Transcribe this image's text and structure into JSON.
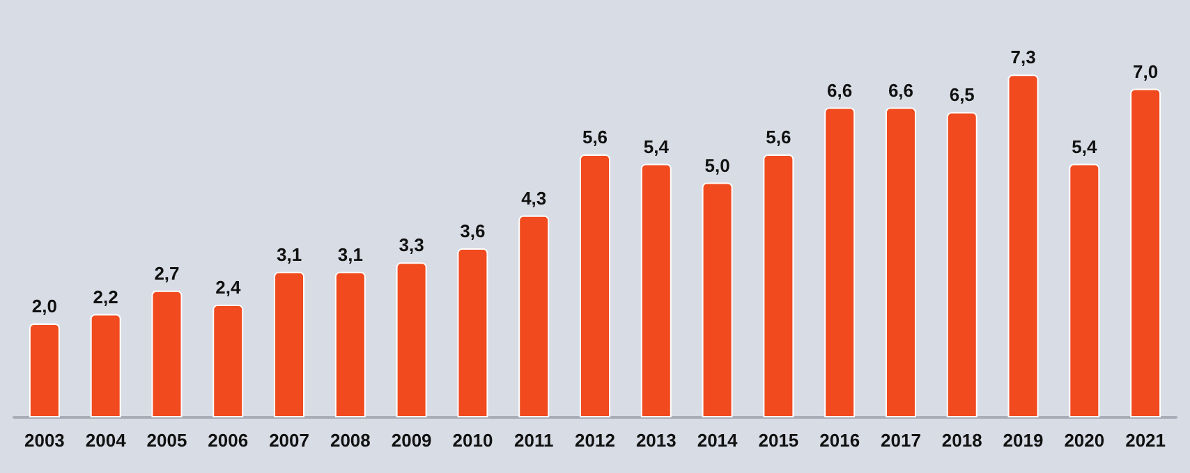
{
  "chart_data": {
    "type": "bar",
    "categories": [
      "2003",
      "2004",
      "2005",
      "2006",
      "2007",
      "2008",
      "2009",
      "2010",
      "2011",
      "2012",
      "2013",
      "2014",
      "2015",
      "2016",
      "2017",
      "2018",
      "2019",
      "2020",
      "2021"
    ],
    "values": [
      2.0,
      2.2,
      2.7,
      2.4,
      3.1,
      3.1,
      3.3,
      3.6,
      4.3,
      5.6,
      5.4,
      5.0,
      5.6,
      6.6,
      6.6,
      6.5,
      7.3,
      5.4,
      7.0
    ],
    "value_labels": [
      "2,0",
      "2,2",
      "2,7",
      "2,4",
      "3,1",
      "3,1",
      "3,3",
      "3,6",
      "4,3",
      "5,6",
      "5,4",
      "5,0",
      "5,6",
      "6,6",
      "6,6",
      "6,5",
      "7,3",
      "5,4",
      "7,0"
    ],
    "color": "#f04a1e"
  }
}
